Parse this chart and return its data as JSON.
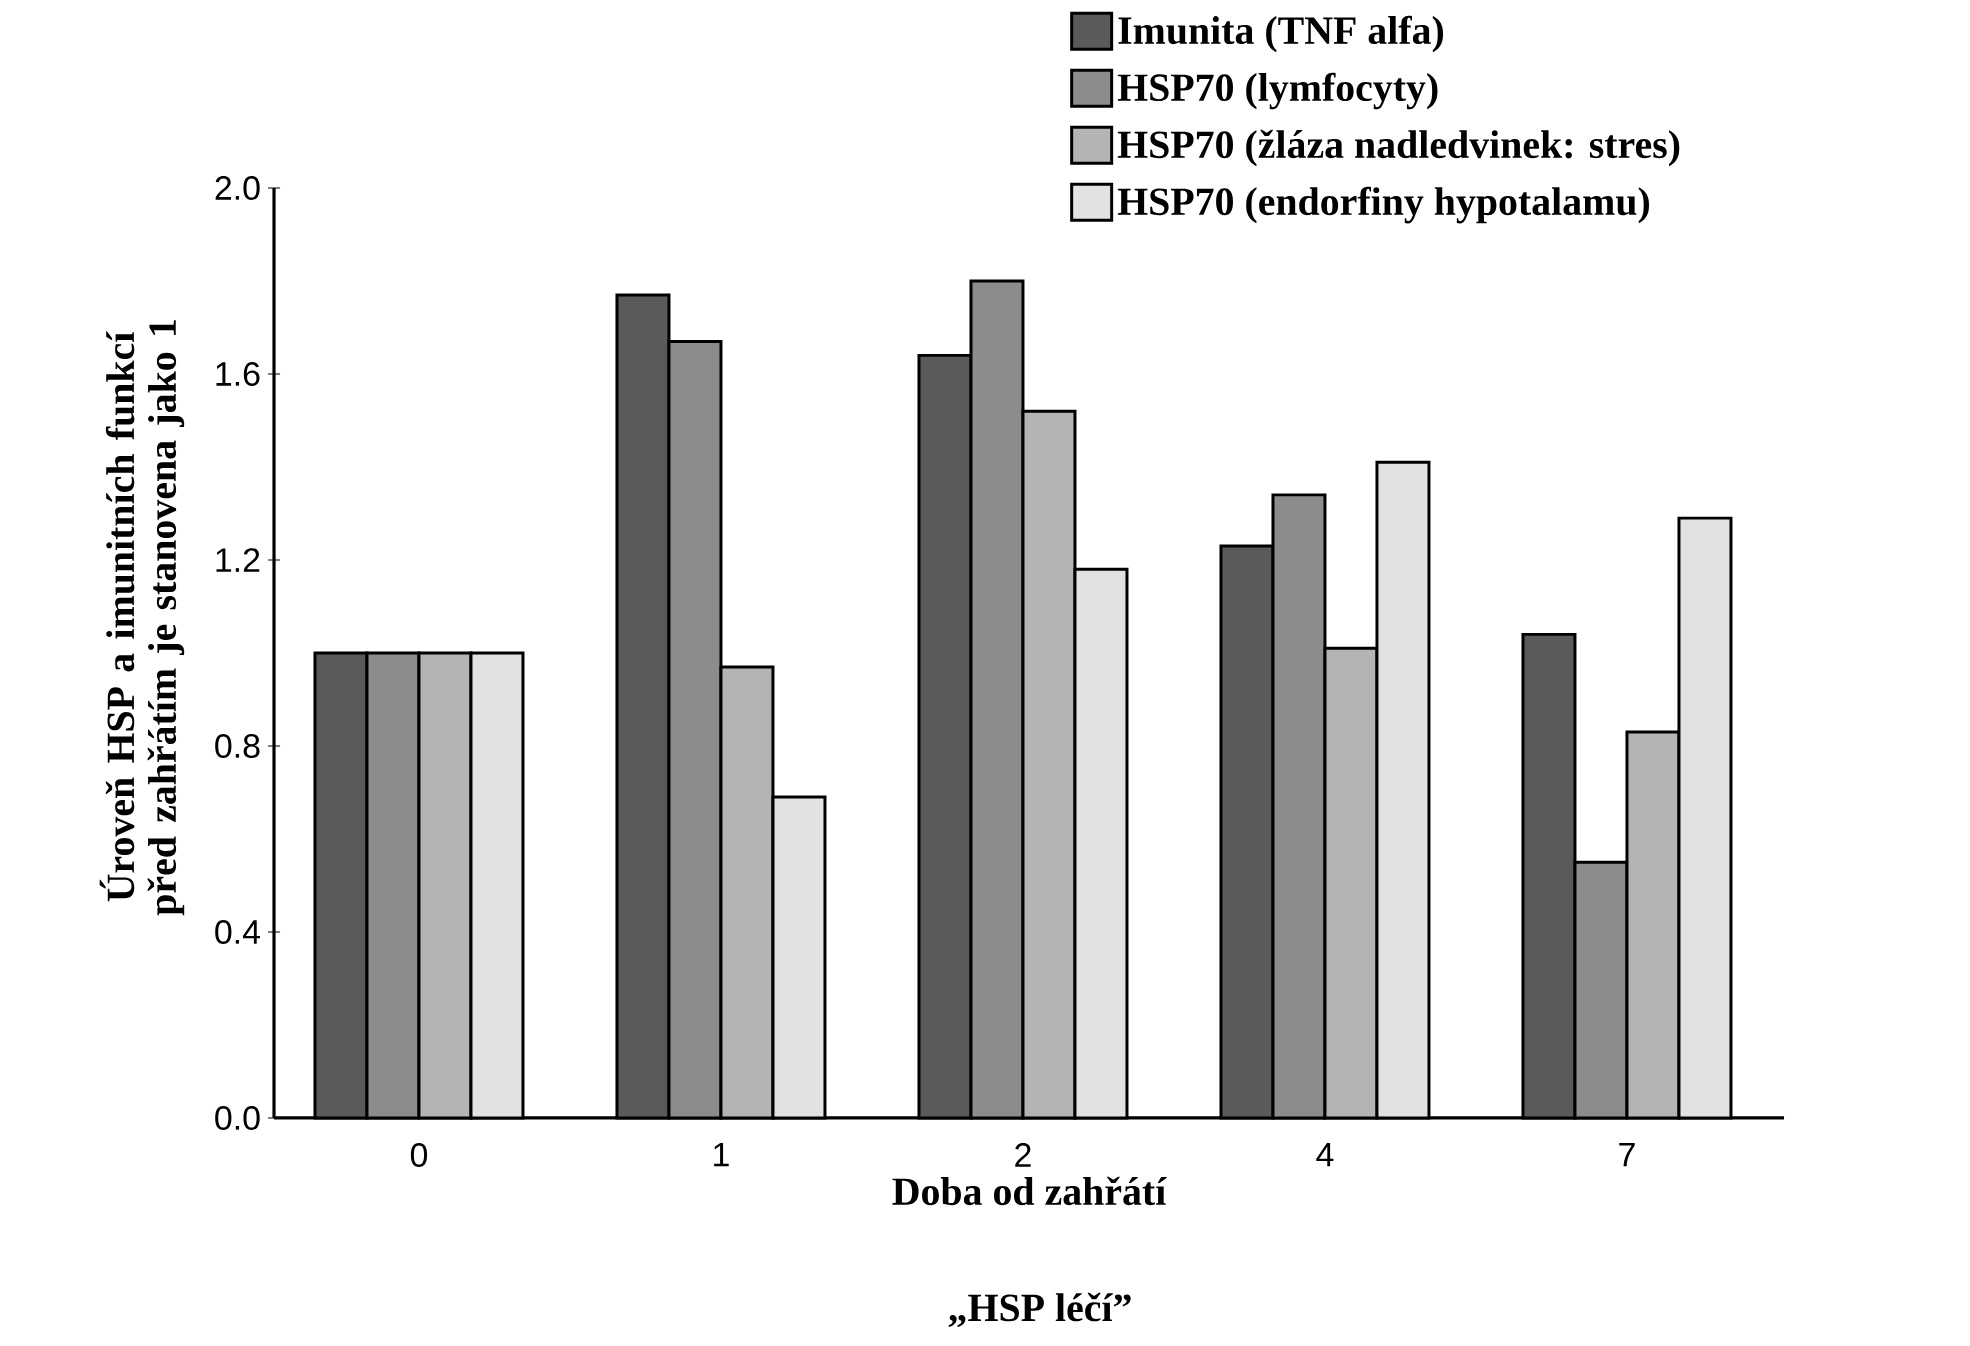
{
  "chart_data": {
    "type": "bar",
    "xlabel": "Doba od zahřátí",
    "ylabel": "Úroveň HSP a imunitních funkcí před zahřátím je stanovena jako 1",
    "categories": [
      "0",
      "1",
      "2",
      "4",
      "7"
    ],
    "series": [
      {
        "name": "Imunita (TNF alfa)",
        "color": "#5a5a5a",
        "values": [
          1.0,
          1.77,
          1.64,
          1.23,
          1.04
        ]
      },
      {
        "name": "HSP70 (lymfocyty)",
        "color": "#8c8c8c",
        "values": [
          1.0,
          1.67,
          1.8,
          1.34,
          0.55
        ]
      },
      {
        "name": "HSP70 (žláza nadledvinek: stres)",
        "color": "#b4b4b4",
        "values": [
          1.0,
          0.97,
          1.52,
          1.01,
          0.83
        ]
      },
      {
        "name": "HSP70 (endorfiny hypotalamu)",
        "color": "#e2e2e2",
        "values": [
          1.0,
          0.69,
          1.18,
          1.41,
          1.29
        ]
      }
    ],
    "ylim": [
      0,
      2.0
    ],
    "yticks": [
      {
        "value": 0,
        "label": "0.0"
      },
      0.4,
      0.8,
      1.2,
      1.6,
      {
        "value": 2.0,
        "label": "2.0"
      }
    ],
    "grid": false,
    "legend": "top right",
    "annotations": [
      "„HSP léčí”"
    ]
  }
}
